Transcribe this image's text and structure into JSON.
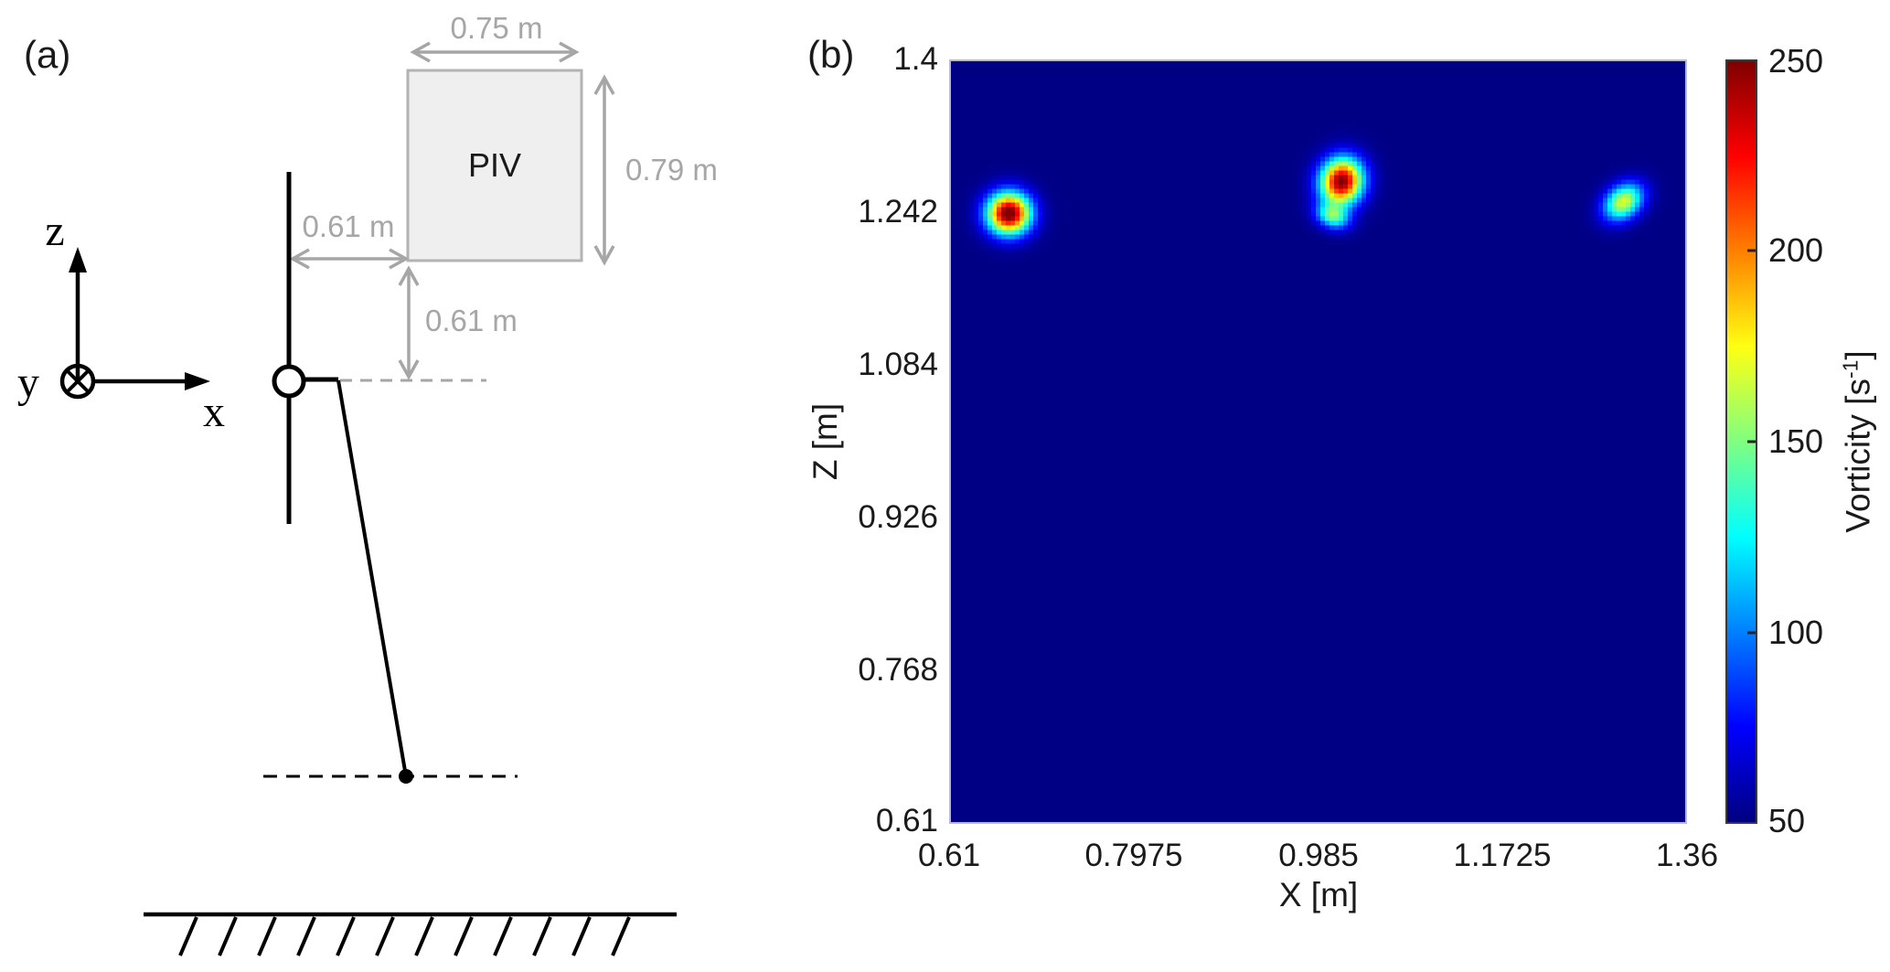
{
  "figure": {
    "panel_a": {
      "label": "(a)",
      "piv_box_label": "PIV",
      "piv_width_dim": "0.75 m",
      "piv_height_dim": "0.79 m",
      "horizontal_offset_dim": "0.61 m",
      "vertical_offset_dim": "0.61 m",
      "axis_z_label": "z",
      "axis_y_label": "y",
      "axis_x_label": "x",
      "colors": {
        "dim_gray": "#a6a6a6",
        "piv_fill": "#efefef",
        "piv_border": "#b3b3b3",
        "line_black": "#000000"
      }
    },
    "panel_b": {
      "label": "(b)",
      "xlabel": "X [m]",
      "ylabel": "Z [m]",
      "x_ticks": [
        "0.61",
        "0.7975",
        "0.985",
        "1.1725",
        "1.36"
      ],
      "y_ticks": [
        "1.4",
        "1.242",
        "1.084",
        "0.926",
        "0.768",
        "0.61"
      ],
      "colorbar_ticks": [
        "250",
        "200",
        "150",
        "100",
        "50"
      ],
      "colorbar_label_main": "Vorticity [s",
      "colorbar_label_sup": "-1",
      "colorbar_label_close": "]"
    }
  },
  "chart_data": {
    "type": "heatmap",
    "title": "",
    "xlabel": "X [m]",
    "ylabel": "Z [m]",
    "x_range": [
      0.61,
      1.36
    ],
    "z_range": [
      0.61,
      1.4
    ],
    "x_tick_values": [
      0.61,
      0.7975,
      0.985,
      1.1725,
      1.36
    ],
    "z_tick_values": [
      1.4,
      1.242,
      1.084,
      0.926,
      0.768,
      0.61
    ],
    "colormap": "jet",
    "grid": false,
    "colorbar": {
      "label": "Vorticity [s^-1]",
      "min": 50,
      "max": 250,
      "tick_values": [
        250,
        200,
        150,
        100,
        50
      ],
      "position": "right"
    },
    "background_value": 51,
    "vortices": [
      {
        "x": 0.669,
        "z": 1.242,
        "peak_vorticity": 258,
        "sigma_major_m": 0.0155,
        "sigma_minor_m": 0.015,
        "angle_deg": 0
      },
      {
        "x": 1.009,
        "z": 1.275,
        "peak_vorticity": 250,
        "sigma_major_m": 0.017,
        "sigma_minor_m": 0.015,
        "angle_deg": 75
      },
      {
        "x": 1.0,
        "z": 1.239,
        "peak_vorticity": 135,
        "sigma_major_m": 0.012,
        "sigma_minor_m": 0.0085,
        "angle_deg": -20
      },
      {
        "x": 1.297,
        "z": 1.254,
        "peak_vorticity": 168,
        "sigma_major_m": 0.0155,
        "sigma_minor_m": 0.0115,
        "angle_deg": 40
      }
    ]
  }
}
